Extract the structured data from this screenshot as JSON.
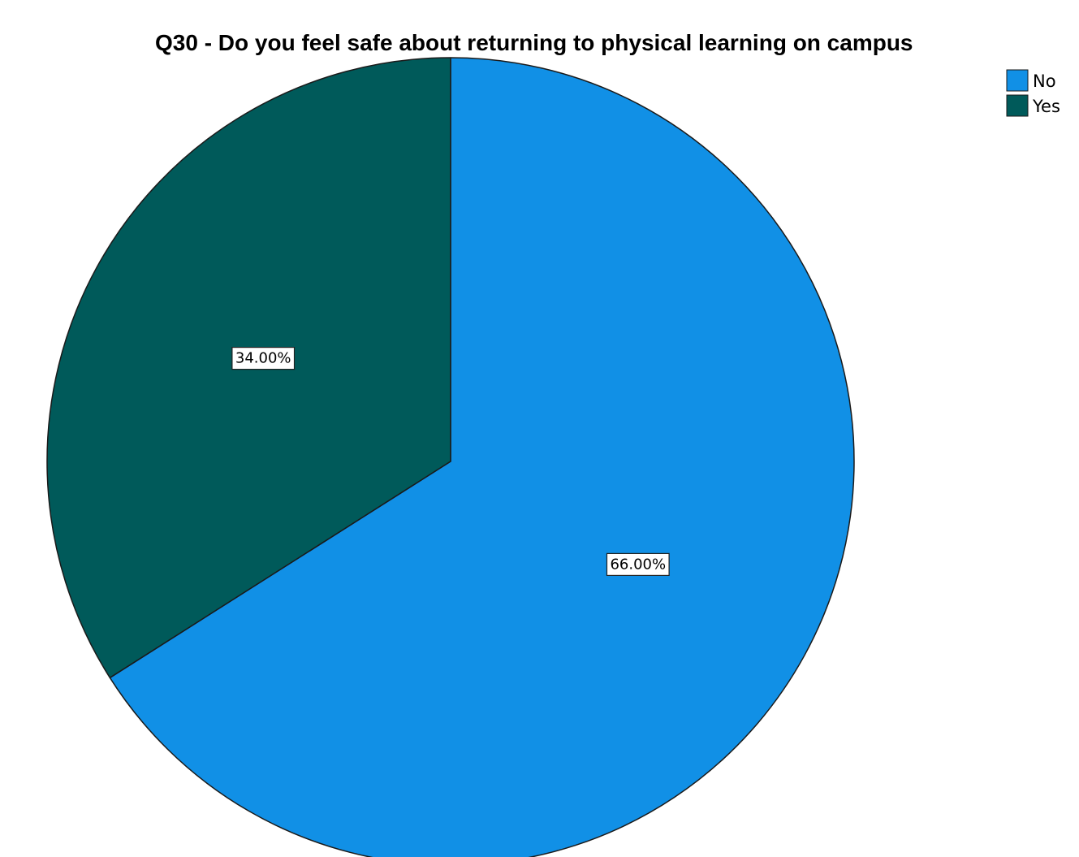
{
  "chart_data": {
    "type": "pie",
    "title": "Q30 - Do you feel safe about returning to physical learning on campus",
    "legend": {
      "position": "top-right",
      "entries": [
        {
          "label": "No",
          "color": "#1190e6"
        },
        {
          "label": "Yes",
          "color": "#005a5a"
        }
      ]
    },
    "slices": [
      {
        "label": "No",
        "value": 66.0,
        "data_label": "66.00%",
        "color": "#1190e6"
      },
      {
        "label": "Yes",
        "value": 34.0,
        "data_label": "34.00%",
        "color": "#005a5a"
      }
    ],
    "units": "percent",
    "start_angle": "12 o'clock",
    "direction": "clockwise"
  }
}
